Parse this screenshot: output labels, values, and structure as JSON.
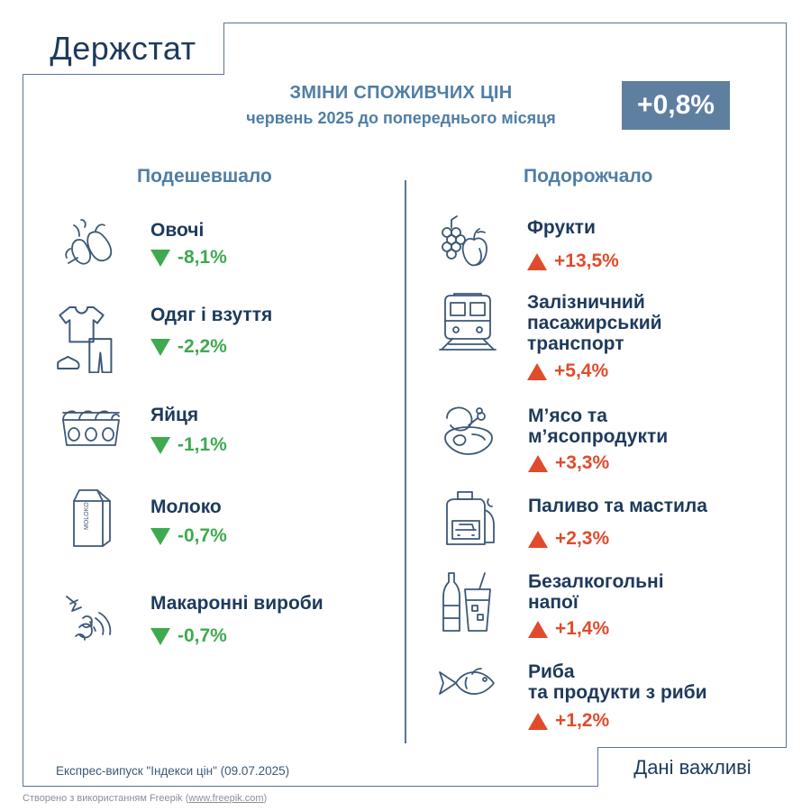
{
  "logo": "Держстат",
  "title": {
    "line1": "ЗМІНИ СПОЖИВЧИХ ЦІН",
    "line2": "червень 2025 до попереднього місяця"
  },
  "total_change": "+0,8%",
  "colors": {
    "accent": "#4f7ea6",
    "dark": "#1d3a5c",
    "down": "#3fa94f",
    "up": "#e04b2c",
    "badge": "#5f7fa1"
  },
  "cheaper": {
    "heading": "Подешевшало",
    "items": [
      {
        "name": "Овочі",
        "change": "-8,1%",
        "icon": "vegetables-icon"
      },
      {
        "name": "Одяг і взуття",
        "change": "-2,2%",
        "icon": "clothes-icon"
      },
      {
        "name": "Яйця",
        "change": "-1,1%",
        "icon": "eggs-icon"
      },
      {
        "name": "Молоко",
        "change": "-0,7%",
        "icon": "milk-icon"
      },
      {
        "name": "Макаронні вироби",
        "change": "-0,7%",
        "icon": "pasta-icon"
      }
    ]
  },
  "pricier": {
    "heading": "Подорожчало",
    "items": [
      {
        "name_lines": [
          "Фрукти"
        ],
        "change": "+13,5%",
        "icon": "fruits-icon"
      },
      {
        "name_lines": [
          "Залізничний",
          "пасажирський",
          "транспорт"
        ],
        "change": "+5,4%",
        "icon": "train-icon"
      },
      {
        "name_lines": [
          "М’ясо та",
          "м’ясопродукти"
        ],
        "change": "+3,3%",
        "icon": "meat-icon"
      },
      {
        "name_lines": [
          "Паливо та мастила"
        ],
        "change": "+2,3%",
        "icon": "fuel-icon"
      },
      {
        "name_lines": [
          "Безалкогольні",
          "напої"
        ],
        "change": "+1,4%",
        "icon": "drinks-icon"
      },
      {
        "name_lines": [
          "Риба",
          "та продукти з риби"
        ],
        "change": "+1,2%",
        "icon": "fish-icon"
      }
    ]
  },
  "footer": {
    "source": "Експрес-випуск \"Індекси цін\" (09.07.2025)",
    "important": "Дані важливі",
    "credit_text": "Створено з використанням Freepik (",
    "credit_link": "www.freepik.com",
    "credit_end": ")"
  }
}
